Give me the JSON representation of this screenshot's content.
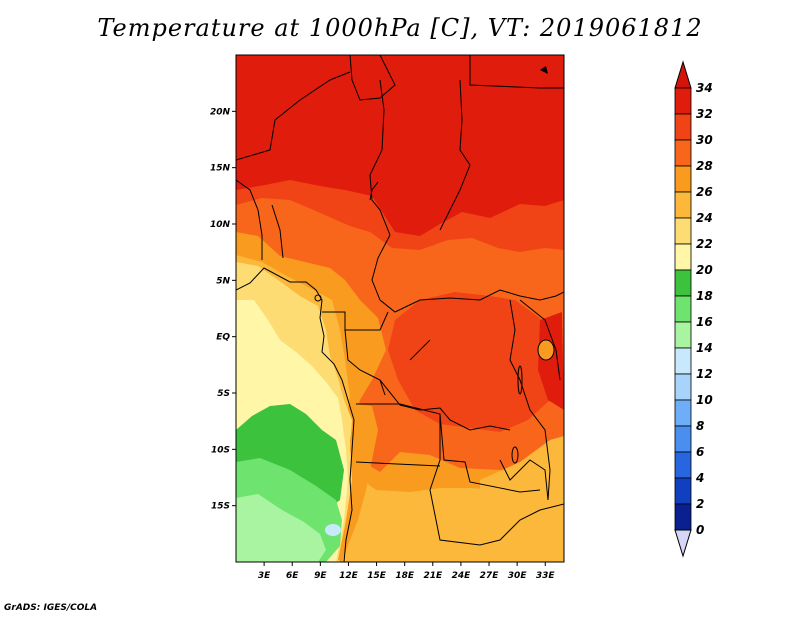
{
  "title": "Temperature at 1000hPa [C], VT: 2019061812",
  "credit": "GrADS: IGES/COLA",
  "map": {
    "lon_range": [
      0,
      35
    ],
    "lat_range": [
      -20,
      25
    ],
    "lat_ticks": [
      {
        "value": 20,
        "label": "20N"
      },
      {
        "value": 15,
        "label": "15N"
      },
      {
        "value": 10,
        "label": "10N"
      },
      {
        "value": 5,
        "label": "5N"
      },
      {
        "value": 0,
        "label": "EQ"
      },
      {
        "value": -5,
        "label": "5S"
      },
      {
        "value": -10,
        "label": "10S"
      },
      {
        "value": -15,
        "label": "15S"
      }
    ],
    "lon_ticks": [
      {
        "value": 3,
        "label": "3E"
      },
      {
        "value": 6,
        "label": "6E"
      },
      {
        "value": 9,
        "label": "9E"
      },
      {
        "value": 12,
        "label": "12E"
      },
      {
        "value": 15,
        "label": "15E"
      },
      {
        "value": 18,
        "label": "18E"
      },
      {
        "value": 21,
        "label": "21E"
      },
      {
        "value": 24,
        "label": "24E"
      },
      {
        "value": 27,
        "label": "27E"
      },
      {
        "value": 30,
        "label": "30E"
      },
      {
        "value": 33,
        "label": "33E"
      }
    ]
  },
  "colorbar": {
    "levels": [
      "34",
      "32",
      "30",
      "28",
      "26",
      "24",
      "22",
      "20",
      "18",
      "16",
      "14",
      "12",
      "10",
      "8",
      "6",
      "4",
      "2",
      "0"
    ],
    "colors": [
      "#e01c0c",
      "#f04416",
      "#f8661c",
      "#f99b1e",
      "#fbb83a",
      "#fddc73",
      "#fff6a8",
      "#3cc23c",
      "#6ee46e",
      "#a8f4a0",
      "#c8e8fc",
      "#a8d4fc",
      "#6eaef8",
      "#4a8ef0",
      "#2866e0",
      "#1040c0",
      "#0a2090",
      "#00086a"
    ],
    "top_triangle_color": "#d41409",
    "bottom_triangle_color": "#d6d6f6"
  }
}
